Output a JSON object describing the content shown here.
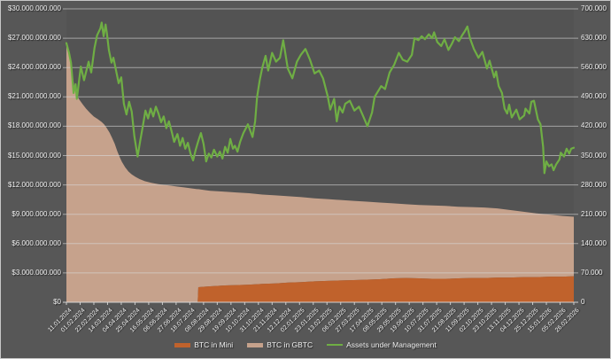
{
  "chart_data": {
    "type": "area+line",
    "legend": [
      "BTC in Mini",
      "BTC in GBTC",
      "Assets under Management"
    ],
    "colors": {
      "mini_area": "#c0622c",
      "gbtc_area": "#c6a28c",
      "aum_line": "#6fae44",
      "background": "#575757",
      "gridline": "#d9d9d9",
      "text": "#f1f1f1"
    },
    "left_axis": {
      "unit": "USD",
      "min": 0,
      "max": 30000000000,
      "tick_labels_bottom_to_top": [
        "$0",
        "$3.000.000.000",
        "$6.000.000.000",
        "$9.000.000.000",
        "$12.000.000.000",
        "$15.000.000.000",
        "$18.000.000.000",
        "$21.000.000.000",
        "$24.000.000.000",
        "$27.000.000.000",
        "$30.000.000.000"
      ]
    },
    "right_axis": {
      "unit": "BTC",
      "min": 0,
      "max": 700000,
      "tick_labels_bottom_to_top": [
        "0",
        "70.000",
        "140.000",
        "210.000",
        "280.000",
        "350.000",
        "420.000",
        "490.000",
        "560.000",
        "630.000",
        "700.000"
      ]
    },
    "x_axis": {
      "start": "11.01.2024",
      "end": "26.02.2026",
      "tick_interval_days": 21,
      "tick_labels": [
        "11.01.2024",
        "01.02.2024",
        "22.02.2024",
        "14.03.2024",
        "04.04.2024",
        "25.04.2024",
        "16.05.2024",
        "06.06.2024",
        "27.06.2024",
        "18.07.2024",
        "08.08.2024",
        "29.08.2024",
        "19.09.2024",
        "10.10.2024",
        "31.10.2024",
        "21.11.2024",
        "12.12.2024",
        "02.01.2025",
        "23.01.2025",
        "13.02.2025",
        "06.03.2025",
        "27.03.2025",
        "17.04.2025",
        "08.05.2025",
        "29.05.2025",
        "19.06.2025",
        "10.07.2025",
        "31.07.2025",
        "21.08.2025",
        "11.09.2025",
        "02.10.2025",
        "23.10.2025",
        "13.11.2025",
        "04.12.2025",
        "25.12.2025",
        "15.01.2026",
        "05.02.2026",
        "26.02.2026"
      ]
    },
    "series_days": [
      0,
      3,
      6,
      9,
      12,
      15,
      20,
      25,
      30,
      36,
      42,
      48,
      54,
      58,
      62,
      66,
      70,
      74,
      78,
      82,
      85,
      90,
      95,
      100,
      106,
      112,
      120,
      130,
      140,
      150,
      160,
      170,
      180,
      190,
      200,
      201,
      202,
      210,
      220,
      240,
      260,
      280,
      300,
      320,
      340,
      360,
      380,
      400,
      420,
      440,
      460,
      480,
      500,
      520,
      540,
      560,
      580,
      600,
      620,
      640,
      660,
      680,
      700,
      720,
      740,
      760,
      777
    ],
    "series": [
      {
        "name": "BTC in Mini",
        "type": "area",
        "stacked": true,
        "axis": "right",
        "unit": "BTC",
        "values": [
          0,
          0,
          0,
          0,
          0,
          0,
          0,
          0,
          0,
          0,
          0,
          0,
          0,
          0,
          0,
          0,
          0,
          0,
          0,
          0,
          0,
          0,
          0,
          0,
          0,
          0,
          0,
          0,
          0,
          0,
          0,
          0,
          0,
          0,
          0,
          0,
          36000,
          37000,
          38000,
          40000,
          41000,
          42000,
          44000,
          45000,
          47000,
          48000,
          50000,
          51000,
          52000,
          53000,
          54000,
          55000,
          57000,
          58000,
          57000,
          56000,
          56000,
          57000,
          58000,
          58000,
          59000,
          59000,
          60000,
          60000,
          61000,
          61000,
          62000
        ]
      },
      {
        "name": "BTC in GBTC",
        "type": "area",
        "stacked": true,
        "axis": "right",
        "unit": "BTC",
        "values": [
          620000,
          600000,
          575000,
          545000,
          515000,
          495000,
          483000,
          472000,
          462000,
          452000,
          443000,
          437000,
          430000,
          424000,
          415000,
          405000,
          392000,
          378000,
          360000,
          345000,
          335000,
          322000,
          312000,
          305000,
          299000,
          294000,
          289000,
          285000,
          282000,
          280000,
          278000,
          276000,
          274000,
          272000,
          270000,
          270000,
          234000,
          231000,
          228000,
          224000,
          221000,
          218000,
          213000,
          210000,
          206000,
          203000,
          198000,
          195000,
          192000,
          189000,
          186000,
          183000,
          179000,
          176000,
          175000,
          175000,
          174000,
          171000,
          169000,
          168000,
          165000,
          161000,
          156000,
          152000,
          148000,
          145000,
          142000
        ]
      },
      {
        "name": "Assets under Management",
        "type": "line",
        "axis": "left",
        "unit": "USD billions",
        "points": [
          [
            0,
            26.5
          ],
          [
            4,
            25.5
          ],
          [
            7,
            24.5
          ],
          [
            11,
            21.4
          ],
          [
            14,
            22.3
          ],
          [
            16,
            20.8
          ],
          [
            22,
            24.1
          ],
          [
            27,
            22.7
          ],
          [
            34,
            24.6
          ],
          [
            38,
            23.5
          ],
          [
            43,
            26.0
          ],
          [
            47,
            27.3
          ],
          [
            52,
            28.0
          ],
          [
            54,
            28.6
          ],
          [
            57,
            27.2
          ],
          [
            60,
            28.4
          ],
          [
            62,
            27.5
          ],
          [
            65,
            25.8
          ],
          [
            69,
            24.5
          ],
          [
            72,
            25.0
          ],
          [
            76,
            23.7
          ],
          [
            80,
            22.4
          ],
          [
            84,
            23.0
          ],
          [
            88,
            20.3
          ],
          [
            92,
            19.2
          ],
          [
            96,
            20.5
          ],
          [
            100,
            19.5
          ],
          [
            104,
            17.0
          ],
          [
            109,
            14.9
          ],
          [
            113,
            16.5
          ],
          [
            117,
            18.0
          ],
          [
            121,
            19.6
          ],
          [
            125,
            18.8
          ],
          [
            129,
            19.8
          ],
          [
            133,
            19.0
          ],
          [
            137,
            20.0
          ],
          [
            141,
            19.3
          ],
          [
            145,
            18.4
          ],
          [
            149,
            19.0
          ],
          [
            153,
            17.8
          ],
          [
            157,
            18.5
          ],
          [
            161,
            17.5
          ],
          [
            165,
            16.4
          ],
          [
            170,
            17.2
          ],
          [
            174,
            16.0
          ],
          [
            178,
            16.8
          ],
          [
            182,
            15.7
          ],
          [
            186,
            16.3
          ],
          [
            190,
            15.2
          ],
          [
            194,
            14.5
          ],
          [
            198,
            15.6
          ],
          [
            202,
            16.5
          ],
          [
            206,
            17.3
          ],
          [
            210,
            16.2
          ],
          [
            214,
            14.4
          ],
          [
            218,
            15.2
          ],
          [
            222,
            14.8
          ],
          [
            226,
            15.6
          ],
          [
            231,
            14.9
          ],
          [
            235,
            15.4
          ],
          [
            239,
            14.7
          ],
          [
            243,
            15.9
          ],
          [
            247,
            15.3
          ],
          [
            251,
            16.7
          ],
          [
            255,
            15.7
          ],
          [
            258,
            16.0
          ],
          [
            262,
            15.4
          ],
          [
            266,
            16.4
          ],
          [
            271,
            17.3
          ],
          [
            278,
            18.2
          ],
          [
            285,
            16.9
          ],
          [
            289,
            18.5
          ],
          [
            292,
            21.0
          ],
          [
            296,
            22.7
          ],
          [
            300,
            24.0
          ],
          [
            305,
            25.2
          ],
          [
            309,
            23.7
          ],
          [
            315,
            25.5
          ],
          [
            321,
            24.6
          ],
          [
            327,
            25.0
          ],
          [
            332,
            26.8
          ],
          [
            339,
            23.9
          ],
          [
            346,
            22.9
          ],
          [
            353,
            24.6
          ],
          [
            359,
            25.3
          ],
          [
            366,
            25.9
          ],
          [
            373,
            24.8
          ],
          [
            380,
            23.4
          ],
          [
            387,
            23.7
          ],
          [
            393,
            22.9
          ],
          [
            400,
            21.1
          ],
          [
            404,
            19.7
          ],
          [
            410,
            20.8
          ],
          [
            414,
            18.5
          ],
          [
            418,
            20.0
          ],
          [
            423,
            19.4
          ],
          [
            427,
            20.3
          ],
          [
            434,
            20.6
          ],
          [
            441,
            19.6
          ],
          [
            448,
            20.0
          ],
          [
            454,
            19.1
          ],
          [
            461,
            18.0
          ],
          [
            468,
            19.4
          ],
          [
            472,
            21.0
          ],
          [
            482,
            22.1
          ],
          [
            488,
            21.8
          ],
          [
            495,
            23.5
          ],
          [
            502,
            24.3
          ],
          [
            509,
            25.5
          ],
          [
            515,
            24.8
          ],
          [
            522,
            24.6
          ],
          [
            529,
            25.3
          ],
          [
            533,
            27.0
          ],
          [
            539,
            26.8
          ],
          [
            544,
            27.2
          ],
          [
            549,
            26.9
          ],
          [
            555,
            27.4
          ],
          [
            560,
            27.0
          ],
          [
            563,
            27.6
          ],
          [
            568,
            26.6
          ],
          [
            574,
            26.2
          ],
          [
            579,
            26.9
          ],
          [
            585,
            25.8
          ],
          [
            590,
            26.4
          ],
          [
            595,
            27.1
          ],
          [
            601,
            26.7
          ],
          [
            606,
            27.3
          ],
          [
            610,
            27.7
          ],
          [
            614,
            28.2
          ],
          [
            618,
            27.0
          ],
          [
            624,
            25.9
          ],
          [
            631,
            25.0
          ],
          [
            637,
            25.6
          ],
          [
            644,
            23.9
          ],
          [
            648,
            24.7
          ],
          [
            655,
            23.0
          ],
          [
            658,
            23.6
          ],
          [
            662,
            22.1
          ],
          [
            667,
            21.4
          ],
          [
            671,
            19.8
          ],
          [
            675,
            19.3
          ],
          [
            678,
            20.2
          ],
          [
            682,
            18.9
          ],
          [
            689,
            19.7
          ],
          [
            694,
            18.7
          ],
          [
            701,
            19.1
          ],
          [
            703,
            19.8
          ],
          [
            709,
            19.3
          ],
          [
            712,
            20.5
          ],
          [
            716,
            20.6
          ],
          [
            722,
            18.7
          ],
          [
            726,
            18.2
          ],
          [
            730,
            15.9
          ],
          [
            732,
            13.2
          ],
          [
            735,
            14.4
          ],
          [
            739,
            13.9
          ],
          [
            743,
            14.1
          ],
          [
            746,
            13.5
          ],
          [
            750,
            14.1
          ],
          [
            755,
            14.6
          ],
          [
            757,
            15.3
          ],
          [
            762,
            14.9
          ],
          [
            766,
            15.7
          ],
          [
            770,
            15.2
          ],
          [
            773,
            15.7
          ],
          [
            777,
            15.8
          ]
        ]
      }
    ]
  }
}
